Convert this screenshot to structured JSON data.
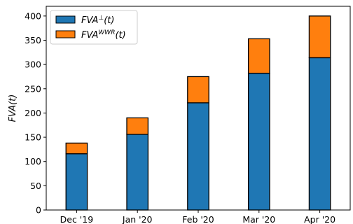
{
  "chart_data": {
    "type": "bar",
    "stacked": true,
    "categories": [
      "Dec '19",
      "Jan '20",
      "Feb '20",
      "Mar '20",
      "Apr '20"
    ],
    "series": [
      {
        "name": "FVA⊥(t)",
        "name_base": "FVA",
        "name_sup": "⊥",
        "name_suffix": "(t)",
        "color": "#1f77b4",
        "values": [
          116,
          156,
          221,
          282,
          314
        ]
      },
      {
        "name": "FVAWWR(t)",
        "name_base": "FVA",
        "name_sup": "WWR",
        "name_suffix": "(t)",
        "color": "#ff7f0e",
        "values": [
          22,
          34,
          54,
          71,
          86
        ]
      }
    ],
    "ylabel": "FVA(t)",
    "xlabel": "",
    "ylim": [
      0,
      420
    ],
    "yticks": [
      0,
      50,
      100,
      150,
      200,
      250,
      300,
      350,
      400
    ],
    "grid": false,
    "legend_position": "top-left"
  }
}
